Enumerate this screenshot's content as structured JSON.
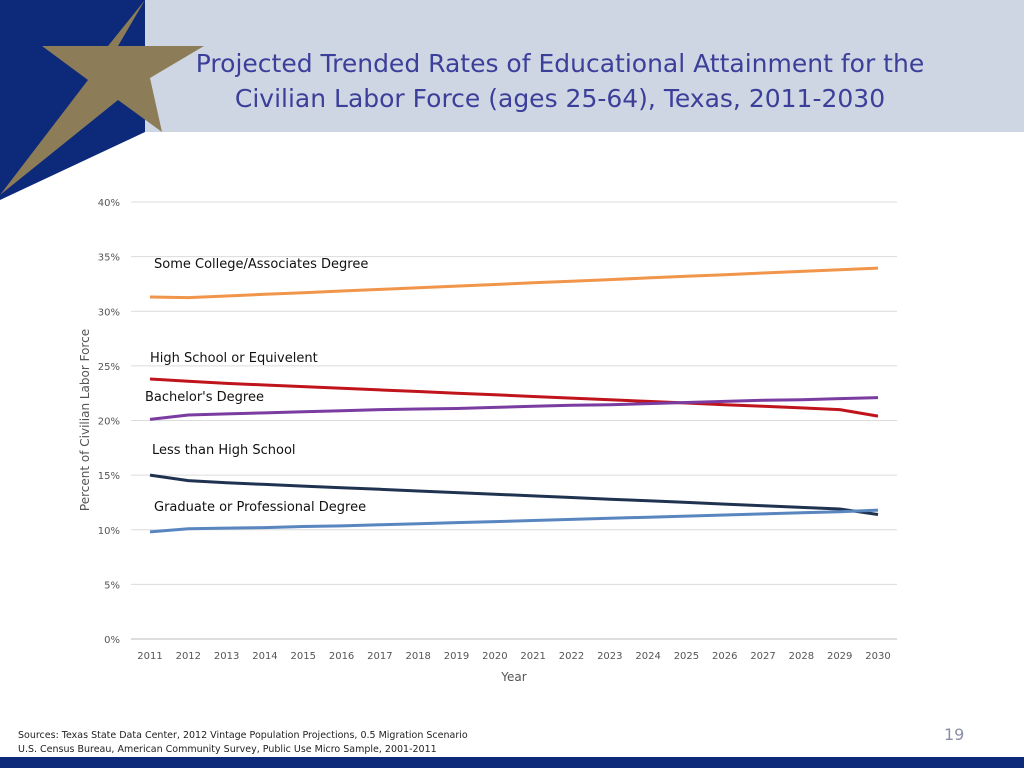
{
  "slide": {
    "title_line1": "Projected Trended Rates of Educational Attainment for the",
    "title_line2": "Civilian Labor Force (ages 25-64), Texas, 2011-2030",
    "sources_line1": "Sources: Texas State Data Center, 2012 Vintage Population Projections, 0.5 Migration Scenario",
    "sources_line2": "U.S. Census Bureau, American Community Survey, Public Use Micro Sample, 2001-2011",
    "page_number": "19",
    "colors": {
      "header_band": "#cfd6e3",
      "navy": "#0d2a7a",
      "gold_star": "#8c7d58",
      "title": "#3b3f9a"
    }
  },
  "chart_data": {
    "type": "line",
    "title": "Projected Trended Rates of Educational Attainment for the Civilian Labor Force (ages 25-64), Texas, 2011-2030",
    "xlabel": "Year",
    "ylabel": "Percent of Civilian Labor Force",
    "ylim": [
      0,
      40
    ],
    "y_ticks": [
      0,
      5,
      10,
      15,
      20,
      25,
      30,
      35,
      40
    ],
    "y_tick_labels": [
      "0%",
      "5%",
      "10%",
      "15%",
      "20%",
      "25%",
      "30%",
      "35%",
      "40%"
    ],
    "grid": true,
    "legend": "inline labels",
    "x": [
      "2011",
      "2012",
      "2013",
      "2014",
      "2015",
      "2016",
      "2017",
      "2018",
      "2019",
      "2020",
      "2021",
      "2022",
      "2023",
      "2024",
      "2025",
      "2026",
      "2027",
      "2028",
      "2029",
      "2030"
    ],
    "series": [
      {
        "name": "Some College/Associates Degree",
        "color": "#f0954a",
        "values": [
          31.3,
          31.25,
          31.4,
          31.55,
          31.7,
          31.85,
          32.0,
          32.15,
          32.3,
          32.45,
          32.6,
          32.75,
          32.9,
          33.05,
          33.2,
          33.35,
          33.5,
          33.65,
          33.8,
          33.95
        ]
      },
      {
        "name": "High School or Equivelent",
        "color": "#c0141c",
        "values": [
          23.8,
          23.6,
          23.4,
          23.25,
          23.1,
          22.95,
          22.8,
          22.65,
          22.5,
          22.35,
          22.2,
          22.05,
          21.9,
          21.75,
          21.6,
          21.45,
          21.3,
          21.15,
          21.0,
          20.4
        ]
      },
      {
        "name": "Bachelor's Degree",
        "color": "#7a3ca0",
        "values": [
          20.1,
          20.5,
          20.6,
          20.7,
          20.8,
          20.9,
          21.0,
          21.05,
          21.1,
          21.2,
          21.3,
          21.4,
          21.45,
          21.55,
          21.65,
          21.75,
          21.85,
          21.9,
          22.0,
          22.1
        ]
      },
      {
        "name": "Less than High School",
        "color": "#1f3350",
        "values": [
          15.0,
          14.5,
          14.3,
          14.15,
          14.0,
          13.85,
          13.7,
          13.55,
          13.4,
          13.25,
          13.1,
          12.95,
          12.8,
          12.65,
          12.5,
          12.35,
          12.2,
          12.05,
          11.9,
          11.4
        ]
      },
      {
        "name": "Graduate or Professional Degree",
        "color": "#5a86c0",
        "values": [
          9.8,
          10.1,
          10.15,
          10.2,
          10.3,
          10.35,
          10.45,
          10.55,
          10.65,
          10.75,
          10.85,
          10.95,
          11.05,
          11.15,
          11.25,
          11.35,
          11.45,
          11.55,
          11.65,
          11.8
        ]
      }
    ]
  }
}
